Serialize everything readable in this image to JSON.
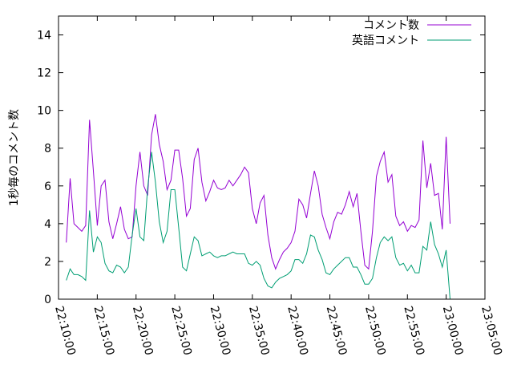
{
  "chart_data": {
    "type": "line",
    "ylabel": "1秒毎のコメント数",
    "ylim": [
      0,
      15
    ],
    "xlim": [
      "22:10:00",
      "23:05:00"
    ],
    "yticks": [
      "0",
      "2",
      "4",
      "6",
      "8",
      "10",
      "12",
      "14"
    ],
    "xticks": [
      "22:10:00",
      "22:15:00",
      "22:20:00",
      "22:25:00",
      "22:30:00",
      "22:35:00",
      "22:40:00",
      "22:45:00",
      "22:50:00",
      "22:55:00",
      "23:00:00",
      "23:05:00"
    ],
    "legend_position": "top-right",
    "grid": false,
    "x": [
      "22:11:00",
      "22:11:30",
      "22:12:00",
      "22:12:30",
      "22:13:00",
      "22:13:30",
      "22:14:00",
      "22:14:30",
      "22:15:00",
      "22:15:30",
      "22:16:00",
      "22:16:30",
      "22:17:00",
      "22:17:30",
      "22:18:00",
      "22:18:30",
      "22:19:00",
      "22:19:30",
      "22:20:00",
      "22:20:30",
      "22:21:00",
      "22:21:30",
      "22:22:00",
      "22:22:30",
      "22:23:00",
      "22:23:30",
      "22:24:00",
      "22:24:30",
      "22:25:00",
      "22:25:30",
      "22:26:00",
      "22:26:30",
      "22:27:00",
      "22:27:30",
      "22:28:00",
      "22:28:30",
      "22:29:00",
      "22:29:30",
      "22:30:00",
      "22:30:30",
      "22:31:00",
      "22:31:30",
      "22:32:00",
      "22:32:30",
      "22:33:00",
      "22:33:30",
      "22:34:00",
      "22:34:30",
      "22:35:00",
      "22:35:30",
      "22:36:00",
      "22:36:30",
      "22:37:00",
      "22:37:30",
      "22:38:00",
      "22:38:30",
      "22:39:00",
      "22:39:30",
      "22:40:00",
      "22:40:30",
      "22:41:00",
      "22:41:30",
      "22:42:00",
      "22:42:30",
      "22:43:00",
      "22:43:30",
      "22:44:00",
      "22:44:30",
      "22:45:00",
      "22:45:30",
      "22:46:00",
      "22:46:30",
      "22:47:00",
      "22:47:30",
      "22:48:00",
      "22:48:30",
      "22:49:00",
      "22:49:30",
      "22:50:00",
      "22:50:30",
      "22:51:00",
      "22:51:30",
      "22:52:00",
      "22:52:30",
      "22:53:00",
      "22:53:30",
      "22:54:00",
      "22:54:30",
      "22:55:00",
      "22:55:30",
      "22:56:00",
      "22:56:30",
      "22:57:00",
      "22:57:30",
      "22:58:00",
      "22:58:30",
      "22:59:00",
      "22:59:30",
      "23:00:00",
      "23:00:30"
    ],
    "series": [
      {
        "name": "コメント数",
        "color": "#9400d3",
        "values": [
          3.0,
          6.4,
          4.0,
          3.8,
          3.6,
          3.9,
          9.5,
          6.8,
          3.9,
          6.0,
          6.3,
          4.1,
          3.2,
          4.0,
          4.9,
          3.7,
          3.2,
          3.3,
          6.0,
          7.8,
          6.0,
          5.5,
          8.7,
          9.8,
          8.2,
          7.3,
          5.8,
          6.3,
          7.9,
          7.9,
          6.4,
          4.4,
          4.8,
          7.4,
          8.0,
          6.2,
          5.2,
          5.7,
          6.3,
          5.9,
          5.8,
          5.9,
          6.3,
          6.0,
          6.3,
          6.6,
          7.0,
          6.7,
          4.8,
          4.0,
          5.1,
          5.5,
          3.4,
          2.2,
          1.6,
          2.1,
          2.5,
          2.7,
          3.0,
          3.6,
          5.3,
          5.0,
          4.3,
          5.6,
          6.8,
          6.0,
          4.5,
          3.8,
          3.2,
          4.1,
          4.6,
          4.5,
          5.0,
          5.7,
          4.9,
          5.6,
          3.6,
          1.8,
          1.6,
          3.6,
          6.5,
          7.3,
          7.8,
          6.2,
          6.6,
          4.4,
          3.9,
          4.1,
          3.6,
          3.9,
          3.8,
          4.2,
          8.4,
          5.9,
          7.2,
          5.5,
          5.6,
          3.7,
          8.6,
          4.0
        ]
      },
      {
        "name": "英語コメント",
        "color": "#009e73",
        "values": [
          1.0,
          1.6,
          1.3,
          1.3,
          1.2,
          1.0,
          4.7,
          2.5,
          3.3,
          3.0,
          1.9,
          1.5,
          1.4,
          1.8,
          1.7,
          1.4,
          1.7,
          3.4,
          4.8,
          3.3,
          3.1,
          5.9,
          7.8,
          6.2,
          4.1,
          3.0,
          3.6,
          5.8,
          5.8,
          3.8,
          1.7,
          1.5,
          2.4,
          3.3,
          3.1,
          2.3,
          2.4,
          2.5,
          2.3,
          2.2,
          2.3,
          2.3,
          2.4,
          2.5,
          2.4,
          2.4,
          2.4,
          1.9,
          1.8,
          2.0,
          1.8,
          1.1,
          0.7,
          0.6,
          0.9,
          1.1,
          1.2,
          1.3,
          1.5,
          2.1,
          2.1,
          1.9,
          2.4,
          3.4,
          3.3,
          2.6,
          2.1,
          1.4,
          1.3,
          1.6,
          1.8,
          2.0,
          2.2,
          2.2,
          1.7,
          1.7,
          1.3,
          0.8,
          0.8,
          1.1,
          2.2,
          3.0,
          3.3,
          3.1,
          3.3,
          2.2,
          1.8,
          1.9,
          1.5,
          1.8,
          1.4,
          1.4,
          2.8,
          2.6,
          4.1,
          2.9,
          2.4,
          1.7,
          2.6,
          0.0
        ]
      }
    ]
  }
}
